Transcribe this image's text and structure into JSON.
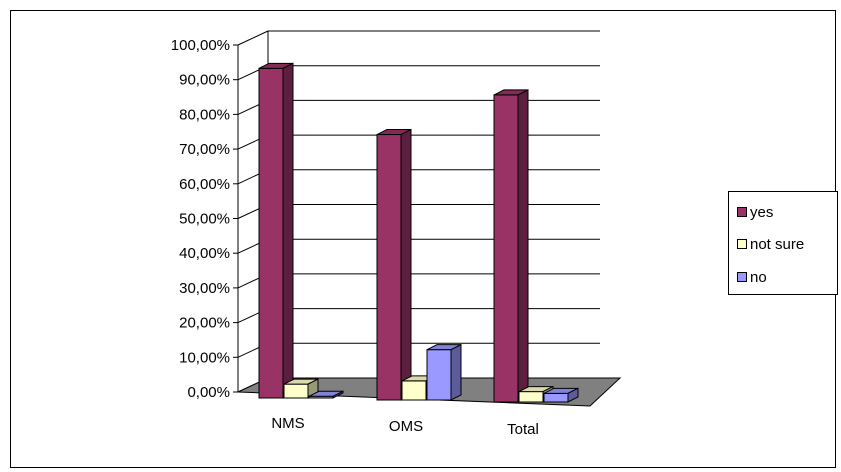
{
  "chart_data": {
    "type": "bar",
    "style": "3d-clustered-column",
    "categories": [
      "NMS",
      "OMS",
      "Total"
    ],
    "series": [
      {
        "name": "yes",
        "values": [
          95.0,
          76.5,
          88.5
        ],
        "color": "#993366"
      },
      {
        "name": "not sure",
        "values": [
          4.0,
          5.5,
          3.0
        ],
        "color": "#FFFFCC"
      },
      {
        "name": "no",
        "values": [
          0.5,
          14.5,
          2.5
        ],
        "color": "#9999FF"
      }
    ],
    "y_ticks": [
      "0,00%",
      "10,00%",
      "20,00%",
      "30,00%",
      "40,00%",
      "50,00%",
      "60,00%",
      "70,00%",
      "80,00%",
      "90,00%",
      "100,00%"
    ],
    "ylim": [
      0,
      100
    ],
    "grid": true,
    "legend_position": "right"
  }
}
